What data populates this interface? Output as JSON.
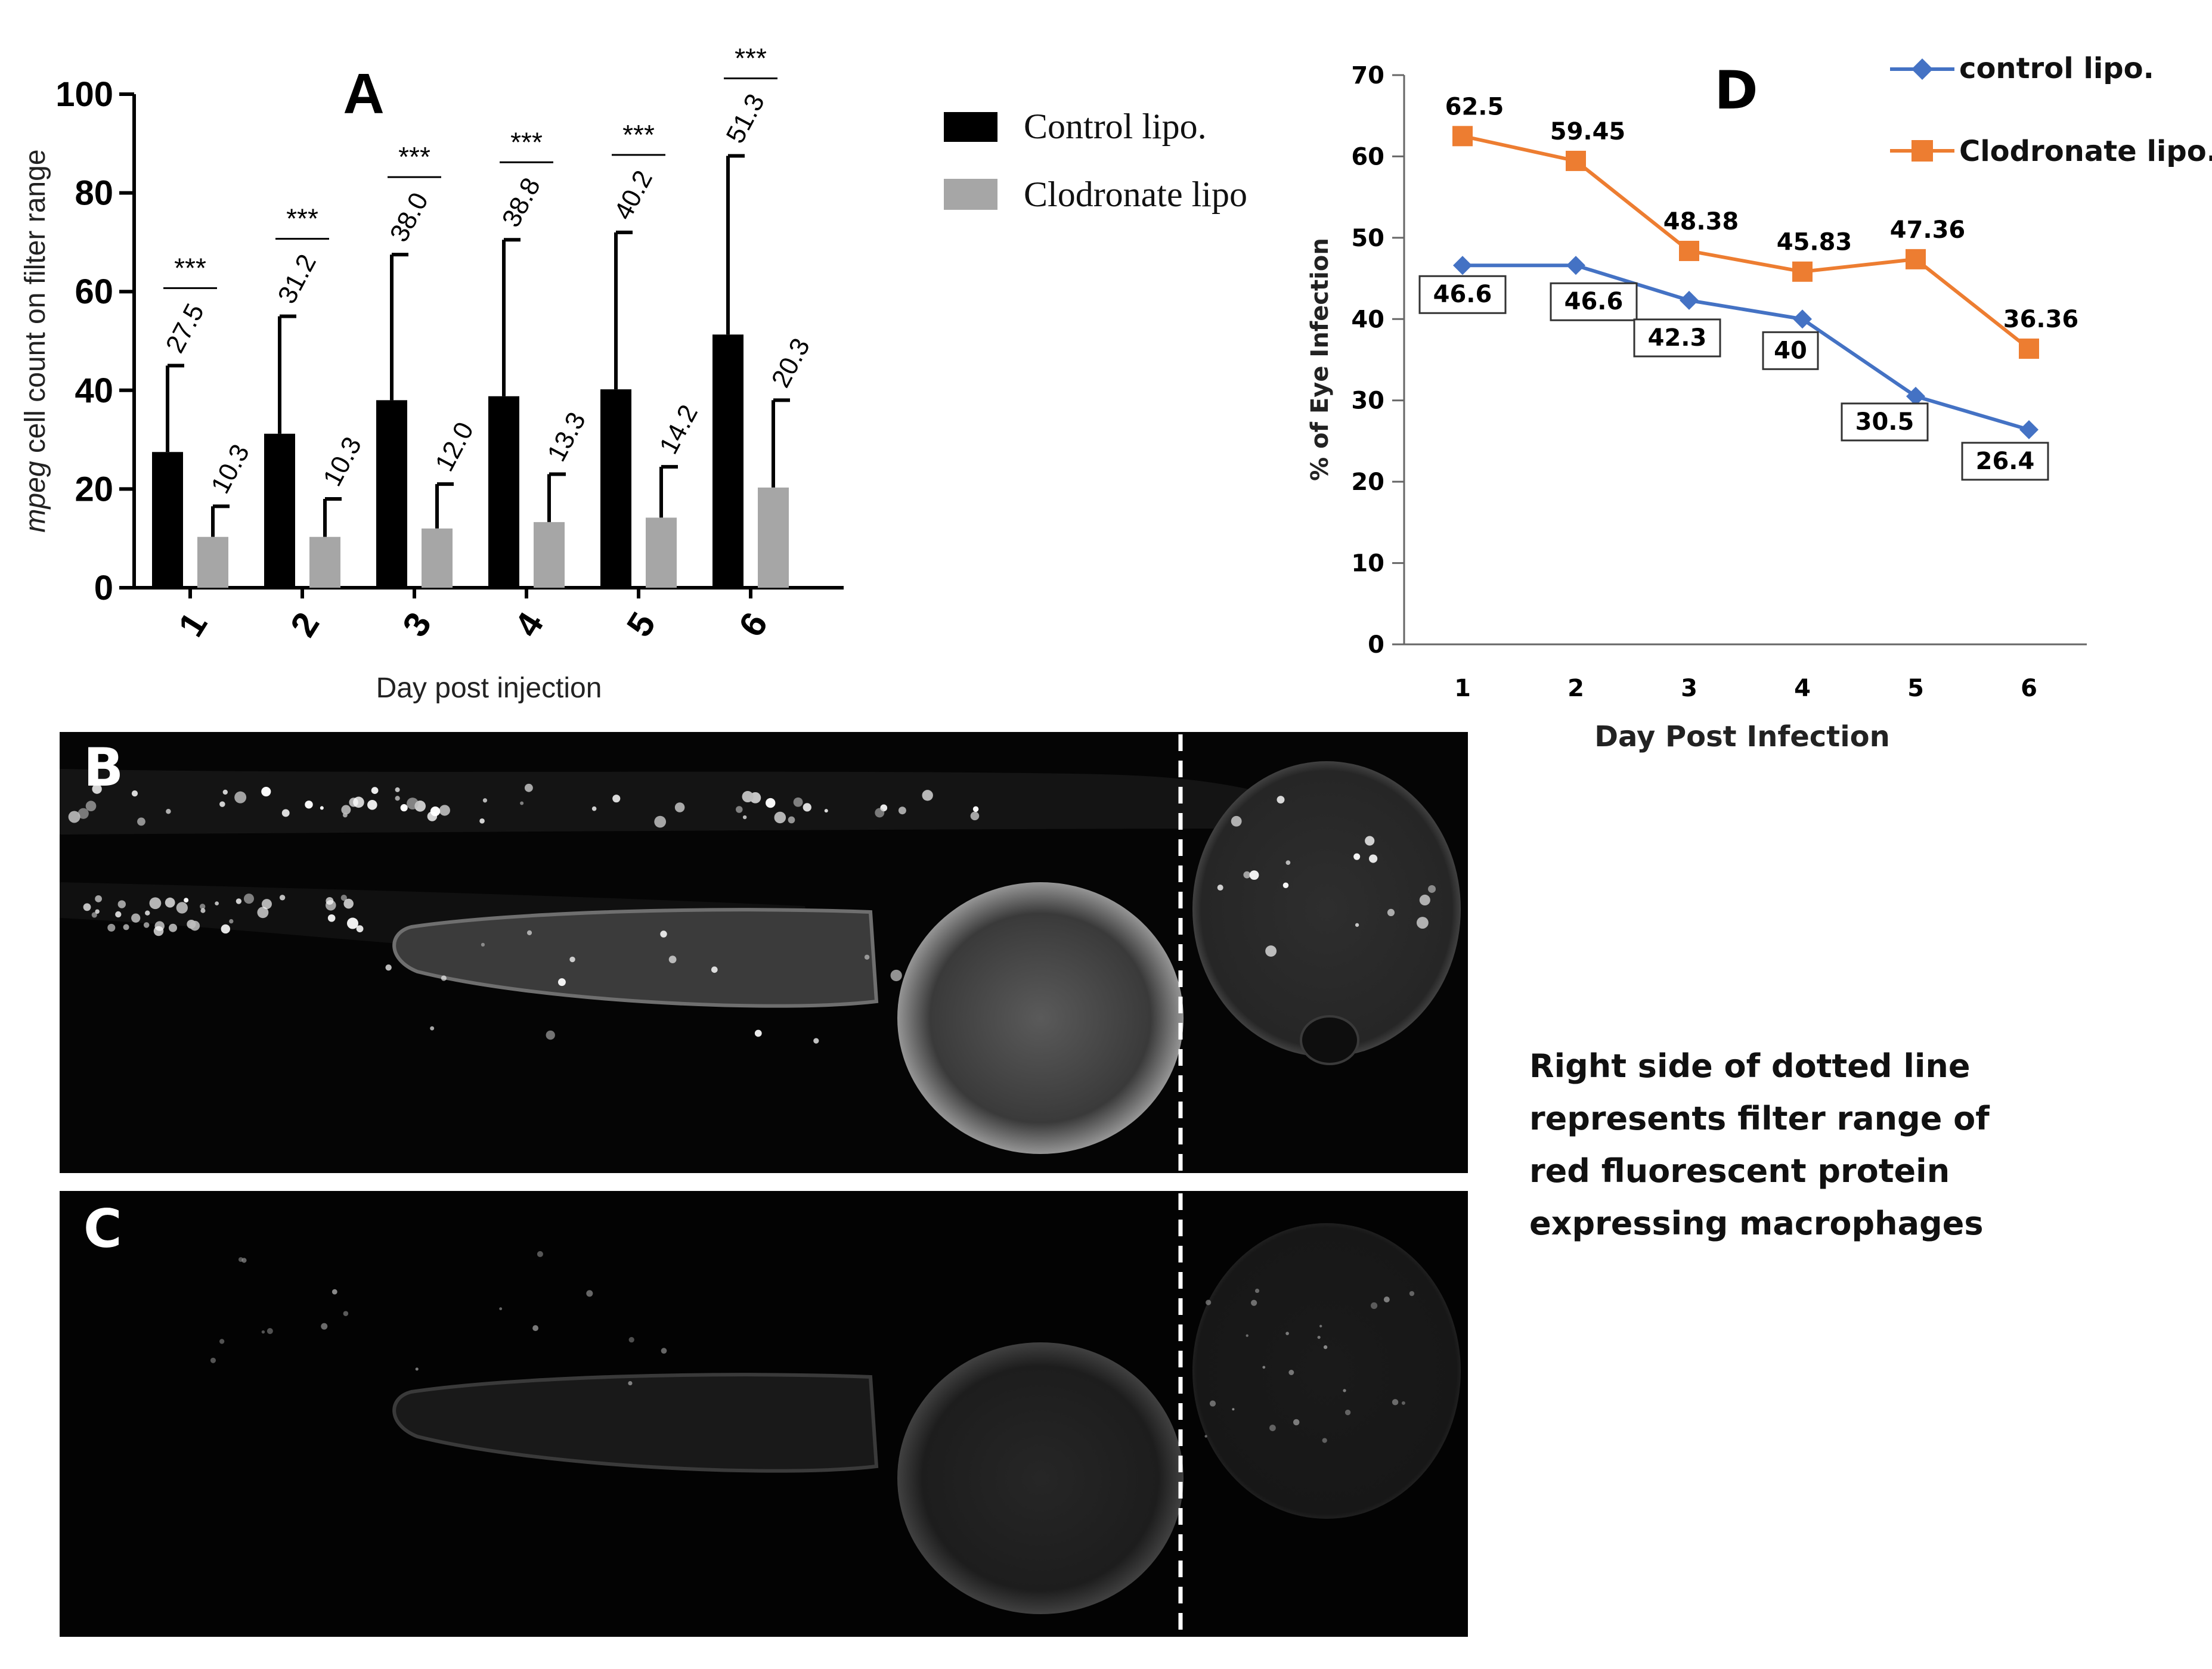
{
  "chart_data": [
    {
      "panel": "A",
      "type": "bar",
      "title": "A",
      "xlabel": "Day post injection",
      "ylabel_italic": "mpeg",
      "ylabel_rest": " cell count on filter range",
      "categories": [
        "1",
        "2",
        "3",
        "4",
        "5",
        "6"
      ],
      "ylim": [
        0,
        100
      ],
      "yticks": [
        0,
        20,
        40,
        60,
        80,
        100
      ],
      "series": [
        {
          "name": "Control lipo.",
          "color": "#000000",
          "values": [
            27.5,
            31.2,
            38.0,
            38.8,
            40.2,
            51.3
          ],
          "labels": [
            "27.5",
            "31.2",
            "38.0",
            "38.8",
            "40.2",
            "51.3"
          ],
          "error_upper": [
            45,
            55,
            67.5,
            70.5,
            72,
            87.5
          ]
        },
        {
          "name": "Clodronate lipo",
          "color": "#a6a6a6",
          "values": [
            10.3,
            10.3,
            12.0,
            13.3,
            14.2,
            20.3
          ],
          "labels": [
            "10.3",
            "10.3",
            "12.0",
            "13.3",
            "14.2",
            "20.3"
          ],
          "error_upper": [
            16.5,
            18,
            21,
            23,
            24.5,
            38
          ]
        }
      ],
      "significance": [
        "***",
        "***",
        "***",
        "***",
        "***",
        "***"
      ]
    },
    {
      "panel": "D",
      "type": "line",
      "title": "D",
      "xlabel": "Day Post Infection",
      "ylabel": "% of Eye Infection",
      "x": [
        "1",
        "2",
        "3",
        "4",
        "5",
        "6"
      ],
      "ylim": [
        0,
        70
      ],
      "yticks": [
        0,
        10,
        20,
        30,
        40,
        50,
        60,
        70
      ],
      "series": [
        {
          "name": "control lipo.",
          "color": "#4472c4",
          "marker": "diamond",
          "values": [
            46.6,
            46.6,
            42.3,
            40,
            30.5,
            26.4
          ],
          "labels": [
            "46.6",
            "46.6",
            "42.3",
            "40",
            "30.5",
            "26.4"
          ]
        },
        {
          "name": "Clodronate lipo.",
          "color": "#ed7d31",
          "marker": "square",
          "values": [
            62.5,
            59.45,
            48.38,
            45.83,
            47.36,
            36.36
          ],
          "labels": [
            "62.5",
            "59.45",
            "48.38",
            "45.83",
            "47.36",
            "36.36"
          ]
        }
      ]
    }
  ],
  "images": {
    "B": {
      "label": "B"
    },
    "C": {
      "label": "C"
    }
  },
  "note": {
    "lines": [
      "Right side of dotted line",
      "represents filter range of",
      "red fluorescent protein",
      "expressing macrophages"
    ]
  }
}
